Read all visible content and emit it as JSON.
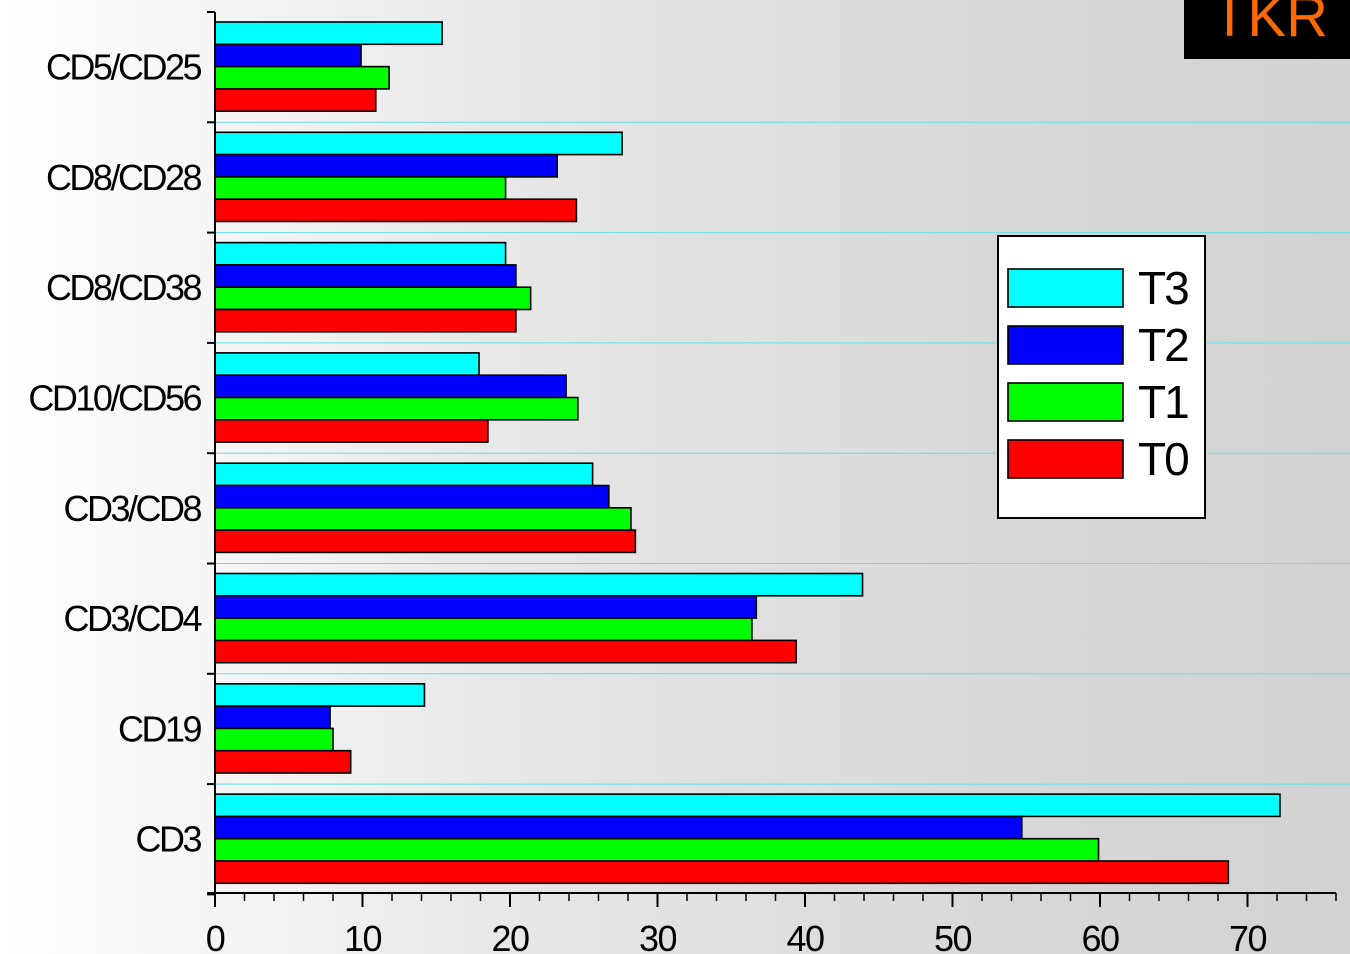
{
  "badge": {
    "text": "TKR",
    "text_color": "#ff6a00",
    "background": "#000000"
  },
  "chart_data": {
    "type": "bar",
    "orientation": "horizontal",
    "categories": [
      "CD5/CD25",
      "CD8/CD28",
      "CD8/CD38",
      "CD10/CD56",
      "CD3/CD8",
      "CD3/CD4",
      "CD19",
      "CD3"
    ],
    "series": [
      {
        "name": "T3",
        "color": "#00ffff",
        "values": [
          15.4,
          27.6,
          19.7,
          17.9,
          25.6,
          43.9,
          14.2,
          72.2
        ]
      },
      {
        "name": "T2",
        "color": "#0000ff",
        "values": [
          9.9,
          23.2,
          20.4,
          23.8,
          26.7,
          36.7,
          7.8,
          54.7
        ]
      },
      {
        "name": "T1",
        "color": "#00ff00",
        "values": [
          11.8,
          19.7,
          21.4,
          24.6,
          28.2,
          36.4,
          8.0,
          59.9
        ]
      },
      {
        "name": "T0",
        "color": "#ff0000",
        "values": [
          10.9,
          24.5,
          20.4,
          18.5,
          28.5,
          39.4,
          9.2,
          68.7
        ]
      }
    ],
    "xlim": [
      0,
      76
    ],
    "x_ticks": [
      "0",
      "10",
      "20",
      "30",
      "40",
      "50",
      "60",
      "70"
    ],
    "title": "",
    "xlabel": "",
    "ylabel": "",
    "grid": "horizontal lines between category groups",
    "grid_color": "#66e0e6",
    "legend": {
      "position": "right",
      "order": [
        "T3",
        "T2",
        "T1",
        "T0"
      ]
    }
  }
}
